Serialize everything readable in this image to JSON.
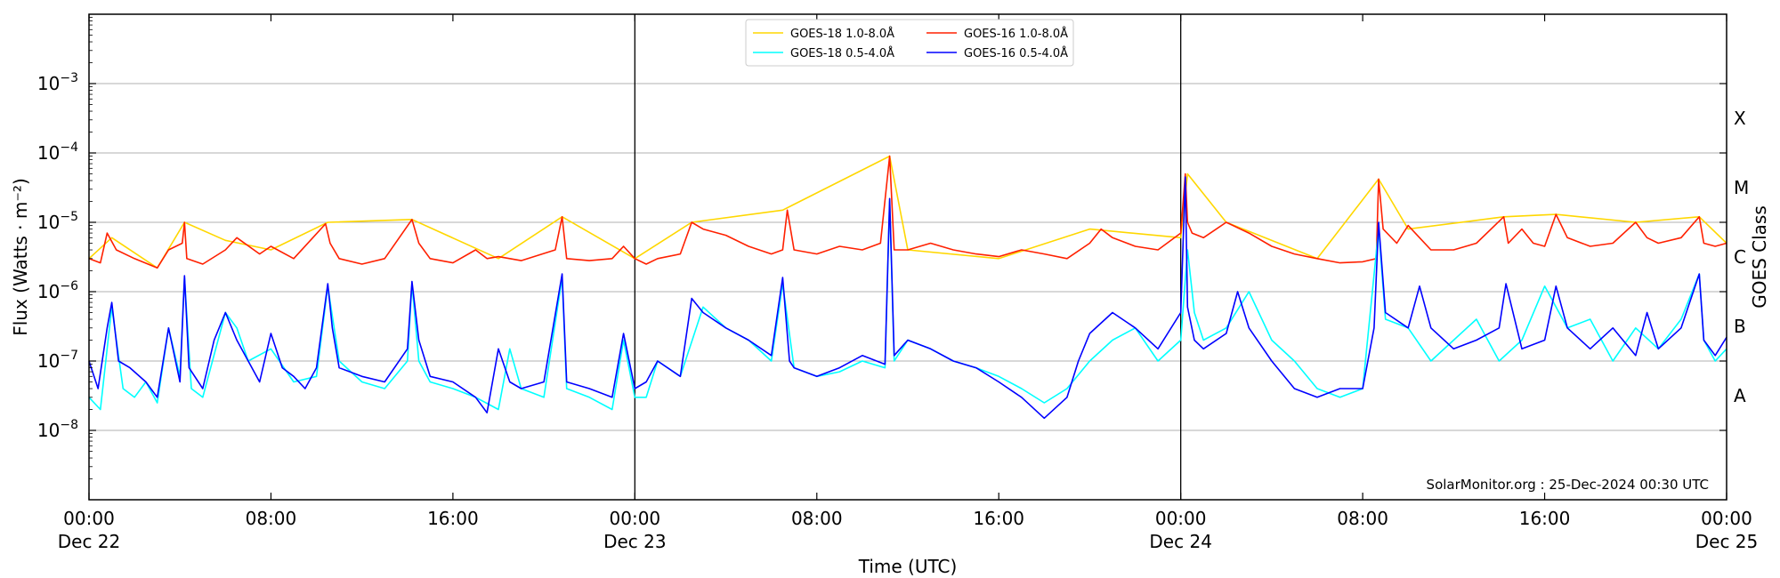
{
  "chart_data": {
    "type": "line",
    "title": "",
    "xlabel": "Time (UTC)",
    "ylabel": "Flux (Watts · m⁻²)",
    "y2label": "GOES Class",
    "yscale": "log",
    "ylim": [
      1e-09,
      0.01
    ],
    "xlim_hours": [
      0,
      72
    ],
    "grid": "horizontal",
    "legend_position": "top-center",
    "watermark": "SolarMonitor.org : 25-Dec-2024 00:30 UTC",
    "y_ticks": [
      {
        "value": 1e-08,
        "base": "10",
        "exp": "−8"
      },
      {
        "value": 1e-07,
        "base": "10",
        "exp": "−7"
      },
      {
        "value": 1e-06,
        "base": "10",
        "exp": "−6"
      },
      {
        "value": 1e-05,
        "base": "10",
        "exp": "−5"
      },
      {
        "value": 0.0001,
        "base": "10",
        "exp": "−4"
      },
      {
        "value": 0.001,
        "base": "10",
        "exp": "−3"
      }
    ],
    "x_ticks": [
      {
        "hour": 0,
        "time": "00:00",
        "date": "Dec 22"
      },
      {
        "hour": 8,
        "time": "08:00",
        "date": ""
      },
      {
        "hour": 16,
        "time": "16:00",
        "date": ""
      },
      {
        "hour": 24,
        "time": "00:00",
        "date": "Dec 23"
      },
      {
        "hour": 32,
        "time": "08:00",
        "date": ""
      },
      {
        "hour": 40,
        "time": "16:00",
        "date": ""
      },
      {
        "hour": 48,
        "time": "00:00",
        "date": "Dec 24"
      },
      {
        "hour": 56,
        "time": "08:00",
        "date": ""
      },
      {
        "hour": 64,
        "time": "16:00",
        "date": ""
      },
      {
        "hour": 72,
        "time": "00:00",
        "date": "Dec 25"
      }
    ],
    "day_boundaries_hours": [
      24,
      48
    ],
    "goes_classes": [
      {
        "label": "A",
        "value": 3.16e-08
      },
      {
        "label": "B",
        "value": 3.16e-07
      },
      {
        "label": "C",
        "value": 3.16e-06
      },
      {
        "label": "M",
        "value": 3.16e-05
      },
      {
        "label": "X",
        "value": 0.000316
      }
    ],
    "series": [
      {
        "name": "GOES-18 1.0-8.0Å",
        "color": "#ffd700",
        "hours": [
          0,
          1,
          3,
          4.2,
          6,
          8,
          10.5,
          14.2,
          18,
          20.8,
          24,
          26.5,
          30.5,
          35.2,
          36,
          40,
          44,
          48,
          48.3,
          50,
          54,
          56.7,
          58,
          62.2,
          64.5,
          68,
          70.8,
          72
        ],
        "values": [
          3e-06,
          6e-06,
          2.2e-06,
          1e-05,
          5.5e-06,
          4e-06,
          1e-05,
          1.1e-05,
          3e-06,
          1.2e-05,
          3e-06,
          1e-05,
          1.5e-05,
          9e-05,
          4e-06,
          3e-06,
          8e-06,
          6e-06,
          5e-05,
          1e-05,
          3e-06,
          4.2e-05,
          8e-06,
          1.2e-05,
          1.3e-05,
          1e-05,
          1.2e-05,
          5e-06
        ]
      },
      {
        "name": "GOES-16 1.0-8.0Å",
        "color": "#ff2000",
        "hours": [
          0,
          0.5,
          0.8,
          1.2,
          2,
          3,
          3.5,
          4.1,
          4.2,
          4.3,
          5,
          6,
          6.5,
          7.5,
          8,
          9,
          10.4,
          10.6,
          11,
          12,
          13,
          14.2,
          14.5,
          15,
          16,
          17,
          17.5,
          18,
          19,
          20.5,
          20.8,
          21,
          22,
          23,
          23.5,
          24,
          24.5,
          25,
          26,
          26.5,
          27,
          28,
          29,
          30,
          30.5,
          30.7,
          31,
          32,
          33,
          34,
          34.8,
          35.2,
          35.4,
          36,
          37,
          38,
          39,
          40,
          41,
          42,
          43,
          44,
          44.5,
          45,
          46,
          47,
          48,
          48.2,
          48.3,
          48.5,
          49,
          50,
          51,
          52,
          53,
          54,
          55,
          56,
          56.6,
          56.7,
          56.9,
          57.5,
          58,
          58.5,
          59,
          60,
          61,
          62.2,
          62.4,
          63,
          63.5,
          64,
          64.5,
          65,
          66,
          67,
          68,
          68.5,
          69,
          70,
          70.8,
          71,
          71.5,
          72
        ],
        "values": [
          3e-06,
          2.6e-06,
          7e-06,
          4e-06,
          3e-06,
          2.2e-06,
          4e-06,
          5e-06,
          1e-05,
          3e-06,
          2.5e-06,
          4e-06,
          6e-06,
          3.5e-06,
          4.5e-06,
          3e-06,
          9.5e-06,
          5e-06,
          3e-06,
          2.5e-06,
          3e-06,
          1.1e-05,
          5e-06,
          3e-06,
          2.6e-06,
          4e-06,
          3e-06,
          3.2e-06,
          2.8e-06,
          4e-06,
          1.2e-05,
          3e-06,
          2.8e-06,
          3e-06,
          4.5e-06,
          3e-06,
          2.5e-06,
          3e-06,
          3.5e-06,
          1e-05,
          8e-06,
          6.5e-06,
          4.5e-06,
          3.5e-06,
          4e-06,
          1.5e-05,
          4e-06,
          3.5e-06,
          4.5e-06,
          4e-06,
          5e-06,
          9e-05,
          4e-06,
          4e-06,
          5e-06,
          4e-06,
          3.5e-06,
          3.2e-06,
          4e-06,
          3.5e-06,
          3e-06,
          5e-06,
          8e-06,
          6e-06,
          4.5e-06,
          4e-06,
          7e-06,
          5e-05,
          1e-05,
          7e-06,
          6e-06,
          1e-05,
          7e-06,
          4.5e-06,
          3.5e-06,
          3e-06,
          2.6e-06,
          2.7e-06,
          3e-06,
          4.2e-05,
          8e-06,
          5e-06,
          9e-06,
          6e-06,
          4e-06,
          4e-06,
          5e-06,
          1.2e-05,
          5e-06,
          8e-06,
          5e-06,
          4.5e-06,
          1.3e-05,
          6e-06,
          4.5e-06,
          5e-06,
          1e-05,
          6e-06,
          5e-06,
          6e-06,
          1.2e-05,
          5e-06,
          4.5e-06,
          5e-06
        ]
      },
      {
        "name": "GOES-18 0.5-4.0Å",
        "color": "#00ffff",
        "hours": [
          0,
          0.5,
          1,
          1.5,
          2,
          2.5,
          3,
          3.5,
          4,
          4.2,
          4.5,
          5,
          6,
          6.5,
          7,
          8,
          9,
          10,
          10.5,
          11,
          12,
          13,
          14,
          14.2,
          14.5,
          15,
          16,
          17,
          18,
          18.5,
          19,
          20,
          20.8,
          21,
          22,
          23,
          23.5,
          24,
          24.5,
          25,
          26,
          27,
          28,
          29,
          30,
          30.5,
          31,
          32,
          33,
          34,
          35,
          35.2,
          35.4,
          36,
          37,
          38,
          39,
          40,
          41,
          42,
          43,
          44,
          45,
          46,
          47,
          48,
          48.3,
          48.6,
          49,
          50,
          51,
          52,
          53,
          54,
          55,
          56,
          56.7,
          57,
          58,
          59,
          60,
          61,
          62,
          63,
          64,
          65,
          66,
          67,
          68,
          69,
          70,
          70.8,
          71,
          71.5,
          72
        ],
        "values": [
          3e-08,
          2e-08,
          6e-07,
          4e-08,
          3e-08,
          5e-08,
          2.5e-08,
          3e-07,
          6e-08,
          1.6e-06,
          4e-08,
          3e-08,
          5e-07,
          3e-07,
          1e-07,
          1.5e-07,
          5e-08,
          6e-08,
          1.2e-06,
          1e-07,
          5e-08,
          4e-08,
          1e-07,
          1.3e-06,
          1e-07,
          5e-08,
          4e-08,
          3e-08,
          2e-08,
          1.5e-07,
          4e-08,
          3e-08,
          1.6e-06,
          4e-08,
          3e-08,
          2e-08,
          2e-07,
          3e-08,
          3e-08,
          1e-07,
          6e-08,
          6e-07,
          3e-07,
          2e-07,
          1e-07,
          1.3e-06,
          8e-08,
          6e-08,
          7e-08,
          1e-07,
          8e-08,
          2e-05,
          1e-07,
          2e-07,
          1.5e-07,
          1e-07,
          8e-08,
          6e-08,
          4e-08,
          2.5e-08,
          4e-08,
          1e-07,
          2e-07,
          3e-07,
          1e-07,
          2e-07,
          4e-06,
          5e-07,
          2e-07,
          3e-07,
          1e-06,
          2e-07,
          1e-07,
          4e-08,
          3e-08,
          4e-08,
          8e-06,
          4e-07,
          3e-07,
          1e-07,
          2e-07,
          4e-07,
          1e-07,
          2e-07,
          1.2e-06,
          3e-07,
          4e-07,
          1e-07,
          3e-07,
          1.5e-07,
          4e-07,
          1.8e-06,
          2e-07,
          1e-07,
          1.5e-07
        ]
      },
      {
        "name": "GOES-16 0.5-4.0Å",
        "color": "#0000ff",
        "hours": [
          0,
          0.4,
          0.8,
          1,
          1.3,
          1.8,
          2.5,
          3,
          3.5,
          4,
          4.2,
          4.4,
          5,
          5.5,
          6,
          6.5,
          7,
          7.5,
          8,
          8.5,
          9,
          9.5,
          10,
          10.5,
          10.7,
          11,
          12,
          13,
          14,
          14.2,
          14.5,
          15,
          16,
          17,
          17.5,
          18,
          18.5,
          19,
          20,
          20.8,
          21,
          22,
          23,
          23.5,
          24,
          24.5,
          25,
          26,
          26.5,
          27,
          28,
          29,
          30,
          30.5,
          30.8,
          31,
          32,
          33,
          34,
          35,
          35.2,
          35.4,
          36,
          37,
          38,
          39,
          40,
          41,
          42,
          43,
          43.5,
          44,
          45,
          46,
          47,
          48,
          48.2,
          48.3,
          48.6,
          49,
          50,
          50.5,
          51,
          52,
          53,
          54,
          55,
          56,
          56.5,
          56.7,
          57,
          58,
          58.5,
          59,
          60,
          61,
          62,
          62.3,
          63,
          64,
          64.5,
          65,
          66,
          67,
          68,
          68.5,
          69,
          70,
          70.8,
          71,
          71.5,
          72
        ],
        "values": [
          1e-07,
          4e-08,
          3e-07,
          7e-07,
          1e-07,
          8e-08,
          5e-08,
          3e-08,
          3e-07,
          5e-08,
          1.7e-06,
          8e-08,
          4e-08,
          2e-07,
          5e-07,
          2e-07,
          1e-07,
          5e-08,
          2.5e-07,
          8e-08,
          6e-08,
          4e-08,
          8e-08,
          1.3e-06,
          3e-07,
          8e-08,
          6e-08,
          5e-08,
          1.5e-07,
          1.4e-06,
          2e-07,
          6e-08,
          5e-08,
          3e-08,
          1.8e-08,
          1.5e-07,
          5e-08,
          4e-08,
          5e-08,
          1.8e-06,
          5e-08,
          4e-08,
          3e-08,
          2.5e-07,
          4e-08,
          5e-08,
          1e-07,
          6e-08,
          8e-07,
          5e-07,
          3e-07,
          2e-07,
          1.2e-07,
          1.6e-06,
          1e-07,
          8e-08,
          6e-08,
          8e-08,
          1.2e-07,
          9e-08,
          2.2e-05,
          1.2e-07,
          2e-07,
          1.5e-07,
          1e-07,
          8e-08,
          5e-08,
          3e-08,
          1.5e-08,
          3e-08,
          1e-07,
          2.5e-07,
          5e-07,
          3e-07,
          1.5e-07,
          5e-07,
          4.5e-05,
          6e-07,
          2e-07,
          1.5e-07,
          2.5e-07,
          1e-06,
          3e-07,
          1e-07,
          4e-08,
          3e-08,
          4e-08,
          4e-08,
          3e-07,
          1e-05,
          5e-07,
          3e-07,
          1.2e-06,
          3e-07,
          1.5e-07,
          2e-07,
          3e-07,
          1.3e-06,
          1.5e-07,
          2e-07,
          1.2e-06,
          3e-07,
          1.5e-07,
          3e-07,
          1.2e-07,
          5e-07,
          1.5e-07,
          3e-07,
          1.8e-06,
          2e-07,
          1.2e-07,
          2.2e-07
        ]
      }
    ]
  }
}
